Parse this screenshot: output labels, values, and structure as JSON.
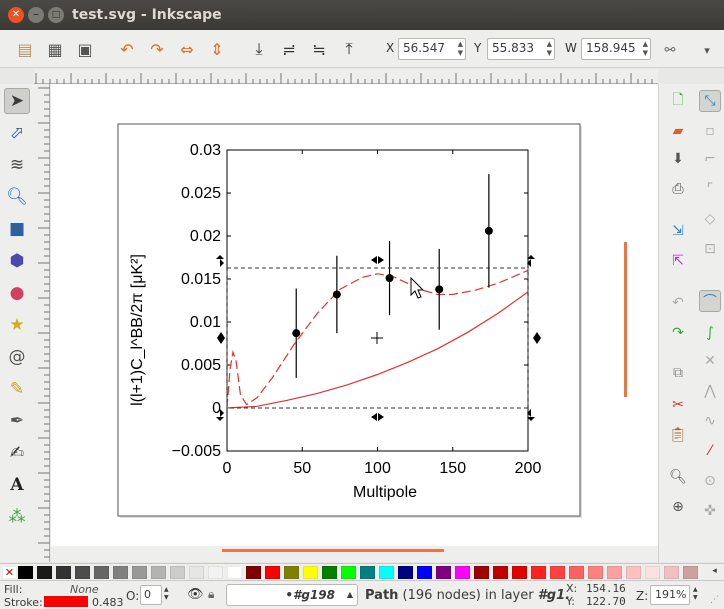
{
  "window": {
    "title": "test.svg - Inkscape"
  },
  "coords": {
    "x_label": "X",
    "x_value": "56.547",
    "y_label": "Y",
    "y_value": "55.833",
    "w_label": "W",
    "w_value": "158.945"
  },
  "chart_data": {
    "type": "scatter",
    "xlabel": "Multipole",
    "ylabel": "l(l+1)C_l^BB/2π [μK²]",
    "xlim": [
      0,
      200
    ],
    "ylim": [
      -0.005,
      0.03
    ],
    "x_ticks": [
      "0",
      "50",
      "100",
      "150",
      "200"
    ],
    "y_ticks": [
      "−0.005",
      "0",
      "0.005",
      "0.01",
      "0.015",
      "0.02",
      "0.025",
      "0.03"
    ],
    "points": [
      {
        "x": 46,
        "y": 0.0087,
        "err": 0.0052
      },
      {
        "x": 73,
        "y": 0.0132,
        "err": 0.0045
      },
      {
        "x": 108,
        "y": 0.0151,
        "err": 0.0043
      },
      {
        "x": 141,
        "y": 0.0138,
        "err": 0.0047
      },
      {
        "x": 174,
        "y": 0.0206,
        "err": 0.0066
      }
    ],
    "dashed_curve": [
      [
        0,
        0.0
      ],
      [
        2,
        0.0045
      ],
      [
        4,
        0.0065
      ],
      [
        6,
        0.0055
      ],
      [
        9,
        0.0015
      ],
      [
        13,
        0.0004
      ],
      [
        20,
        0.0012
      ],
      [
        30,
        0.0035
      ],
      [
        45,
        0.0075
      ],
      [
        60,
        0.011
      ],
      [
        75,
        0.0138
      ],
      [
        90,
        0.0152
      ],
      [
        100,
        0.0156
      ],
      [
        110,
        0.0153
      ],
      [
        120,
        0.0145
      ],
      [
        130,
        0.0137
      ],
      [
        140,
        0.0132
      ],
      [
        150,
        0.0132
      ],
      [
        165,
        0.0137
      ],
      [
        180,
        0.0145
      ],
      [
        200,
        0.016
      ]
    ],
    "solid_curve": [
      [
        0,
        0.0
      ],
      [
        20,
        0.0002
      ],
      [
        40,
        0.0009
      ],
      [
        60,
        0.0017
      ],
      [
        80,
        0.0027
      ],
      [
        100,
        0.0039
      ],
      [
        120,
        0.0053
      ],
      [
        140,
        0.0069
      ],
      [
        160,
        0.0088
      ],
      [
        180,
        0.011
      ],
      [
        200,
        0.0135
      ]
    ],
    "colors": {
      "curve": "#e8302a",
      "points": "#000000"
    }
  },
  "status": {
    "fill_label": "Fill:",
    "fill_value": "None",
    "stroke_label": "Stroke:",
    "stroke_width": "0.483",
    "opacity_label": "O:",
    "opacity_value": "0",
    "layer_id": "•#g198",
    "message_bold": "Path",
    "message_rest": " (196 nodes) in layer ",
    "message_layer": "#g1.",
    "cursor_x_label": "X:",
    "cursor_x": "154.16",
    "cursor_y_label": "Y:",
    "cursor_y": "122.70",
    "zoom_label": "Z:",
    "zoom_value": "191%"
  },
  "palette": [
    "#000000",
    "#1a1a1a",
    "#333333",
    "#4d4d4d",
    "#666666",
    "#808080",
    "#999999",
    "#b3b3b3",
    "#cccccc",
    "#e6e6e6",
    "#f2f2f2",
    "#ffffff",
    "#800000",
    "#ff0000",
    "#808000",
    "#ffff00",
    "#008000",
    "#00ff00",
    "#008080",
    "#00ffff",
    "#000080",
    "#0000ff",
    "#800080",
    "#ff00ff",
    "#a00000",
    "#c00000",
    "#e00000",
    "#ff2020",
    "#ff4040",
    "#ff6060",
    "#ff8080",
    "#ffa0a0",
    "#ffc0c0",
    "#ffe0e0",
    "#f0c0c0",
    "#d0a0a0"
  ]
}
